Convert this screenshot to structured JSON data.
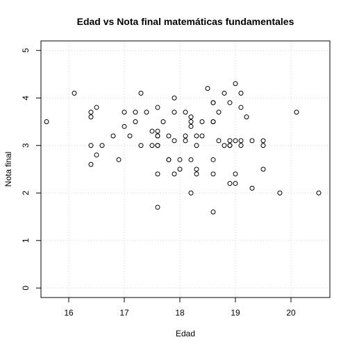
{
  "chart_data": {
    "type": "scatter",
    "title": "Edad vs Nota final matemáticas fundamentales",
    "xlabel": "Edad",
    "ylabel": "Nota final",
    "xlim": [
      15.5,
      20.7
    ],
    "ylim": [
      -0.2,
      5.2
    ],
    "xticks": [
      "16",
      "17",
      "18",
      "19",
      "20"
    ],
    "yticks": [
      "0",
      "1",
      "2",
      "3",
      "4",
      "5"
    ],
    "grid": true,
    "points": [
      [
        15.6,
        3.5
      ],
      [
        16.1,
        4.1
      ],
      [
        16.4,
        3.7
      ],
      [
        16.4,
        3.6
      ],
      [
        16.4,
        3.0
      ],
      [
        16.4,
        2.6
      ],
      [
        16.5,
        3.8
      ],
      [
        16.5,
        2.8
      ],
      [
        16.6,
        3.0
      ],
      [
        16.8,
        3.2
      ],
      [
        16.9,
        2.7
      ],
      [
        17.0,
        3.7
      ],
      [
        17.0,
        3.4
      ],
      [
        17.1,
        3.2
      ],
      [
        17.2,
        3.7
      ],
      [
        17.2,
        3.5
      ],
      [
        17.3,
        4.1
      ],
      [
        17.3,
        3.0
      ],
      [
        17.4,
        3.7
      ],
      [
        17.5,
        3.3
      ],
      [
        17.5,
        3.0
      ],
      [
        17.6,
        3.8
      ],
      [
        17.6,
        3.3
      ],
      [
        17.6,
        3.2
      ],
      [
        17.6,
        3.2
      ],
      [
        17.6,
        3.0
      ],
      [
        17.6,
        3.0
      ],
      [
        17.6,
        2.4
      ],
      [
        17.6,
        1.7
      ],
      [
        17.7,
        3.5
      ],
      [
        17.8,
        3.2
      ],
      [
        17.8,
        2.7
      ],
      [
        17.8,
        2.7
      ],
      [
        17.9,
        4.0
      ],
      [
        17.9,
        3.7
      ],
      [
        17.9,
        3.1
      ],
      [
        17.9,
        2.4
      ],
      [
        18.0,
        2.7
      ],
      [
        18.0,
        2.5
      ],
      [
        18.1,
        3.7
      ],
      [
        18.1,
        3.2
      ],
      [
        18.1,
        3.1
      ],
      [
        18.2,
        3.6
      ],
      [
        18.2,
        3.5
      ],
      [
        18.2,
        3.4
      ],
      [
        18.2,
        2.7
      ],
      [
        18.2,
        2.0
      ],
      [
        18.3,
        3.2
      ],
      [
        18.3,
        3.0
      ],
      [
        18.3,
        2.5
      ],
      [
        18.3,
        2.4
      ],
      [
        18.4,
        3.5
      ],
      [
        18.4,
        3.2
      ],
      [
        18.5,
        4.2
      ],
      [
        18.6,
        3.9
      ],
      [
        18.6,
        3.9
      ],
      [
        18.6,
        3.5
      ],
      [
        18.6,
        3.5
      ],
      [
        18.6,
        2.7
      ],
      [
        18.6,
        2.4
      ],
      [
        18.6,
        1.6
      ],
      [
        18.7,
        3.7
      ],
      [
        18.7,
        3.1
      ],
      [
        18.8,
        4.1
      ],
      [
        18.8,
        3.0
      ],
      [
        18.9,
        3.9
      ],
      [
        18.9,
        3.1
      ],
      [
        18.9,
        3.0
      ],
      [
        18.9,
        3.0
      ],
      [
        18.9,
        2.2
      ],
      [
        19.0,
        4.3
      ],
      [
        19.0,
        3.1
      ],
      [
        19.0,
        2.4
      ],
      [
        19.0,
        2.2
      ],
      [
        19.1,
        4.1
      ],
      [
        19.1,
        3.8
      ],
      [
        19.1,
        3.1
      ],
      [
        19.1,
        3.0
      ],
      [
        19.2,
        3.6
      ],
      [
        19.3,
        3.1
      ],
      [
        19.3,
        2.1
      ],
      [
        19.5,
        3.1
      ],
      [
        19.5,
        3.0
      ],
      [
        19.5,
        2.5
      ],
      [
        19.8,
        2.0
      ],
      [
        20.1,
        3.7
      ],
      [
        20.5,
        2.0
      ]
    ]
  }
}
